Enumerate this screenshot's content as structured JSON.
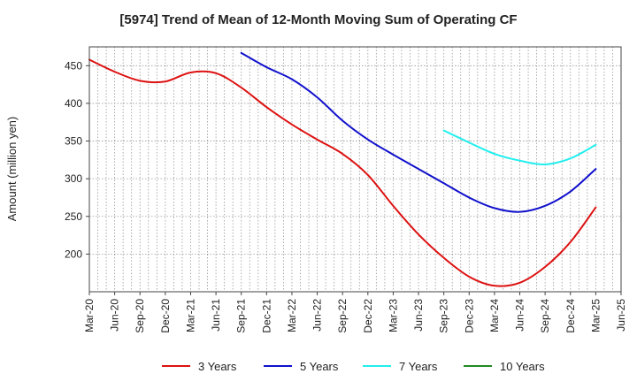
{
  "chart_data": {
    "type": "line",
    "title": "[5974]  Trend of Mean of 12-Month Moving Sum of Operating CF",
    "xlabel": "",
    "ylabel": "Amount (million yen)",
    "categories": [
      "Mar-20",
      "Jun-20",
      "Sep-20",
      "Dec-20",
      "Mar-21",
      "Jun-21",
      "Sep-21",
      "Dec-21",
      "Mar-22",
      "Jun-22",
      "Sep-22",
      "Dec-22",
      "Mar-23",
      "Jun-23",
      "Sep-23",
      "Dec-23",
      "Mar-24",
      "Jun-24",
      "Sep-24",
      "Dec-24",
      "Mar-25",
      "Jun-25"
    ],
    "ylim": [
      150,
      475
    ],
    "yticks": [
      200,
      250,
      300,
      350,
      400,
      450
    ],
    "grid": true,
    "legend_position": "bottom",
    "series": [
      {
        "name": "3 Years",
        "color": "#dd1111",
        "values": [
          458,
          442,
          430,
          429,
          441,
          440,
          421,
          395,
          372,
          352,
          333,
          305,
          264,
          226,
          195,
          170,
          158,
          162,
          183,
          216,
          262,
          null
        ]
      },
      {
        "name": "5 Years",
        "color": "#1111cc",
        "values": [
          null,
          null,
          null,
          null,
          null,
          null,
          467,
          448,
          432,
          408,
          377,
          352,
          332,
          313,
          294,
          275,
          261,
          256,
          264,
          283,
          313,
          null
        ]
      },
      {
        "name": "7 Years",
        "color": "#22eeee",
        "values": [
          null,
          null,
          null,
          null,
          null,
          null,
          null,
          null,
          null,
          null,
          null,
          null,
          null,
          null,
          364,
          348,
          333,
          324,
          319,
          327,
          345,
          null
        ]
      },
      {
        "name": "10 Years",
        "color": "#228822",
        "values": [
          null,
          null,
          null,
          null,
          null,
          null,
          null,
          null,
          null,
          null,
          null,
          null,
          null,
          null,
          null,
          null,
          null,
          null,
          null,
          null,
          null,
          null
        ]
      }
    ]
  }
}
